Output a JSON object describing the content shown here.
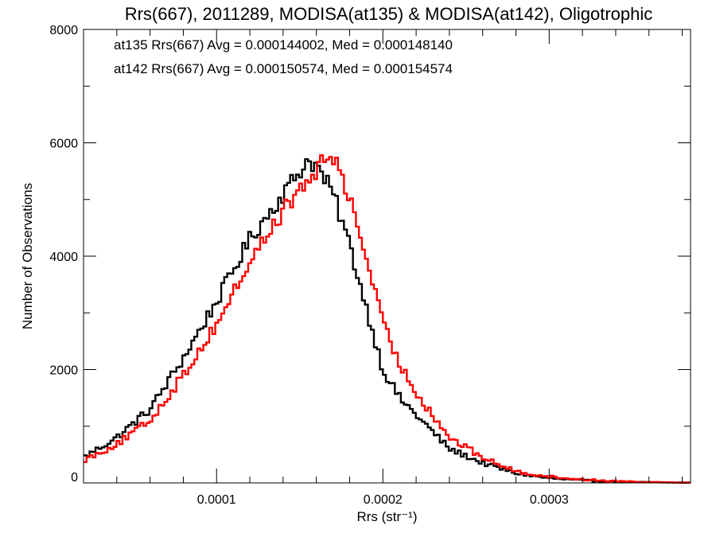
{
  "chart_data": {
    "type": "line",
    "subtype": "step-histogram",
    "title": "Rrs(667), 2011289, MODISA(at135) & MODISA(at142), Oligotrophic",
    "xlabel": "Rrs (str⁻¹)",
    "ylabel": "Number of Observations",
    "xlim": [
      2e-05,
      0.000385
    ],
    "ylim": [
      0,
      8000
    ],
    "x_ticks": [
      0.0001,
      0.0002,
      0.0003
    ],
    "x_tick_labels": [
      "0.0001",
      "0.0002",
      "0.0003"
    ],
    "y_ticks": [
      0,
      2000,
      4000,
      6000,
      8000
    ],
    "y_tick_labels": [
      "0",
      "2000",
      "4000",
      "6000",
      "8000"
    ],
    "grid": false,
    "legend_position": "top-left",
    "annotations": [
      {
        "text": "at135 Rrs(667) Avg = 0.000144002, Med = 0.000148140",
        "color": "#000000"
      },
      {
        "text": "at142 Rrs(667) Avg = 0.000150574, Med = 0.000154574",
        "color": "#ff0000"
      }
    ],
    "bin_width": 1.8e-06,
    "series": [
      {
        "color": "#000000",
        "peak_x": 0.000155,
        "peak_count": 5700,
        "points": [
          [
            2e-05,
            450
          ],
          [
            4e-05,
            800
          ],
          [
            6e-05,
            1300
          ],
          [
            8e-05,
            2200
          ],
          [
            0.0001,
            3200
          ],
          [
            0.00012,
            4300
          ],
          [
            0.00014,
            5100
          ],
          [
            0.000155,
            5700
          ],
          [
            0.00016,
            5600
          ],
          [
            0.00017,
            5100
          ],
          [
            0.00018,
            4200
          ],
          [
            0.00019,
            3100
          ],
          [
            0.0002,
            2000
          ],
          [
            0.00021,
            1500
          ],
          [
            0.00022,
            1200
          ],
          [
            0.00023,
            900
          ],
          [
            0.00024,
            600
          ],
          [
            0.00026,
            350
          ],
          [
            0.00028,
            170
          ],
          [
            0.0003,
            80
          ],
          [
            0.00032,
            45
          ],
          [
            0.00034,
            20
          ],
          [
            0.00036,
            10
          ],
          [
            0.000385,
            5
          ]
        ]
      },
      {
        "color": "#ff0000",
        "peak_x": 0.000168,
        "peak_count": 5800,
        "points": [
          [
            2e-05,
            400
          ],
          [
            4e-05,
            680
          ],
          [
            6e-05,
            1100
          ],
          [
            8e-05,
            1900
          ],
          [
            0.0001,
            2800
          ],
          [
            0.00012,
            3900
          ],
          [
            0.00014,
            4800
          ],
          [
            0.00016,
            5500
          ],
          [
            0.000168,
            5800
          ],
          [
            0.000175,
            5500
          ],
          [
            0.00018,
            5000
          ],
          [
            0.00019,
            4000
          ],
          [
            0.0002,
            2800
          ],
          [
            0.00021,
            2100
          ],
          [
            0.00022,
            1600
          ],
          [
            0.00023,
            1200
          ],
          [
            0.00024,
            800
          ],
          [
            0.00026,
            450
          ],
          [
            0.00028,
            200
          ],
          [
            0.0003,
            110
          ],
          [
            0.00032,
            60
          ],
          [
            0.00034,
            30
          ],
          [
            0.00036,
            15
          ],
          [
            0.000385,
            5
          ]
        ]
      }
    ]
  }
}
